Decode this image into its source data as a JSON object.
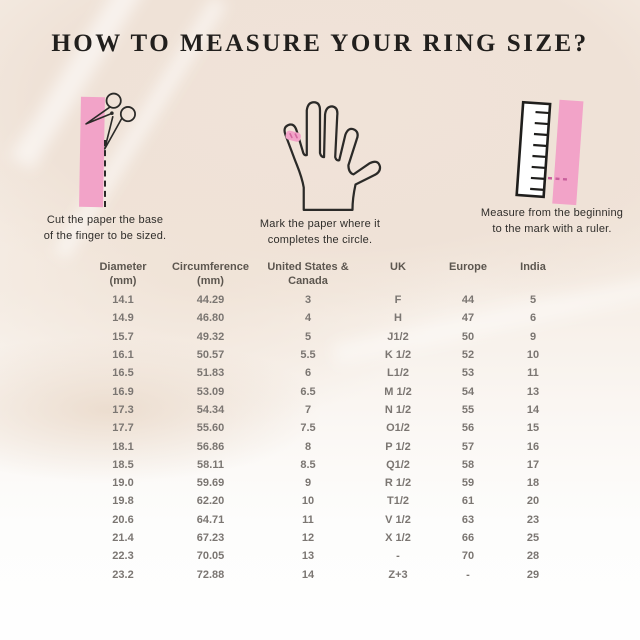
{
  "title": "HOW TO MEASURE YOUR RING SIZE?",
  "steps": [
    {
      "icon": "scissors-paper-strip-icon",
      "caption": [
        "Cut the paper the base",
        "of the finger to be sized."
      ]
    },
    {
      "icon": "hand-ring-mark-icon",
      "caption": [
        "Mark the paper where it",
        "completes the circle."
      ]
    },
    {
      "icon": "ruler-paper-strip-icon",
      "caption": [
        "Measure from the beginning",
        "to the mark with a ruler."
      ]
    }
  ],
  "table": {
    "headers": [
      {
        "line1": "Diameter",
        "line2": "(mm)"
      },
      {
        "line1": "Circumference",
        "line2": "(mm)"
      },
      {
        "line1": "United States &",
        "line2": "Canada"
      },
      {
        "line1": "UK",
        "line2": ""
      },
      {
        "line1": "Europe",
        "line2": ""
      },
      {
        "line1": "India",
        "line2": ""
      }
    ],
    "rows": [
      [
        "14.1",
        "44.29",
        "3",
        "F",
        "44",
        "5"
      ],
      [
        "14.9",
        "46.80",
        "4",
        "H",
        "47",
        "6"
      ],
      [
        "15.7",
        "49.32",
        "5",
        "J1/2",
        "50",
        "9"
      ],
      [
        "16.1",
        "50.57",
        "5.5",
        "K 1/2",
        "52",
        "10"
      ],
      [
        "16.5",
        "51.83",
        "6",
        "L1/2",
        "53",
        "11"
      ],
      [
        "16.9",
        "53.09",
        "6.5",
        "M 1/2",
        "54",
        "13"
      ],
      [
        "17.3",
        "54.34",
        "7",
        "N 1/2",
        "55",
        "14"
      ],
      [
        "17.7",
        "55.60",
        "7.5",
        "O1/2",
        "56",
        "15"
      ],
      [
        "18.1",
        "56.86",
        "8",
        "P 1/2",
        "57",
        "16"
      ],
      [
        "18.5",
        "58.11",
        "8.5",
        "Q1/2",
        "58",
        "17"
      ],
      [
        "19.0",
        "59.69",
        "9",
        "R 1/2",
        "59",
        "18"
      ],
      [
        "19.8",
        "62.20",
        "10",
        "T1/2",
        "61",
        "20"
      ],
      [
        "20.6",
        "64.71",
        "11",
        "V 1/2",
        "63",
        "23"
      ],
      [
        "21.4",
        "67.23",
        "12",
        "X 1/2",
        "66",
        "25"
      ],
      [
        "22.3",
        "70.05",
        "13",
        "-",
        "70",
        "28"
      ],
      [
        "23.2",
        "72.88",
        "14",
        "Z+3",
        "-",
        "29"
      ]
    ]
  },
  "colors": {
    "accent_pink": "#f2a3c8",
    "accent_pink_dark": "#d4679f",
    "background_cream": "#f0e3d8",
    "title_text": "#211f1d",
    "header_text": "#5c564f",
    "table_text": "#7b7672",
    "line_art": "#2b2a28"
  }
}
